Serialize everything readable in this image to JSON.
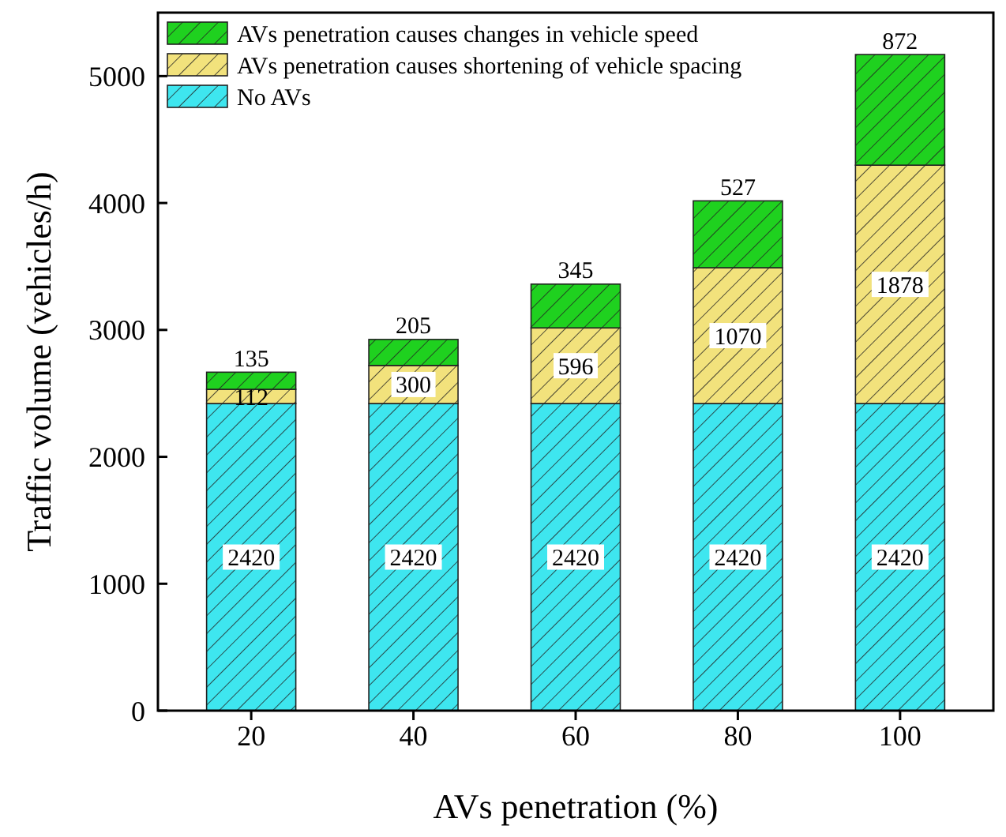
{
  "chart_data": {
    "type": "bar",
    "stacked": true,
    "xlabel": "AVs penetration (%)",
    "ylabel": "Traffic volume (vehicles/h)",
    "categories": [
      "20",
      "40",
      "60",
      "80",
      "100"
    ],
    "series": [
      {
        "name": "No AVs",
        "color": "#3ee6ef",
        "values": [
          2420,
          2420,
          2420,
          2420,
          2420
        ]
      },
      {
        "name": "AVs penetration causes shortening of vehicle spacing",
        "color": "#f2e27c",
        "values": [
          112,
          300,
          596,
          1070,
          1878
        ]
      },
      {
        "name": "AVs penetration causes changes in vehicle speed",
        "color": "#1fd11f",
        "values": [
          135,
          205,
          345,
          527,
          872
        ]
      }
    ],
    "ylim": [
      0,
      5500
    ],
    "yticks": [
      0,
      1000,
      2000,
      3000,
      4000,
      5000
    ],
    "data_labels": true,
    "legend": "top left",
    "grid": false
  }
}
